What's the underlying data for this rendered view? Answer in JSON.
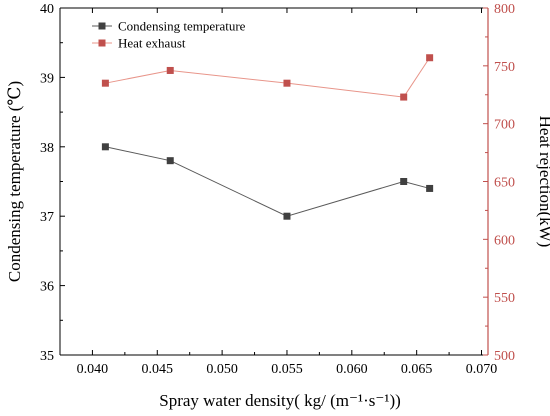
{
  "chart_data": {
    "type": "line",
    "x": [
      0.041,
      0.046,
      0.055,
      0.064,
      0.066
    ],
    "xlim": [
      0.0375,
      0.0705
    ],
    "xticks": [
      "0.040",
      "0.045",
      "0.050",
      "0.055",
      "0.060",
      "0.065",
      "0.070"
    ],
    "xlabel": "Spray water density( kg/ (m⁻¹·s⁻¹))",
    "y_left": {
      "label": "Condensing temperature (℃)",
      "lim": [
        35,
        40
      ],
      "ticks": [
        "35",
        "36",
        "37",
        "38",
        "39",
        "40"
      ]
    },
    "y_right": {
      "label": "Heat rejection(kW)",
      "lim": [
        500,
        800
      ],
      "ticks": [
        "500",
        "550",
        "600",
        "650",
        "700",
        "750",
        "800"
      ]
    },
    "series": [
      {
        "name": "Condensing temperature",
        "axis": "left",
        "color": "#595959",
        "marker_color": "#404040",
        "values": [
          38.0,
          37.8,
          37.0,
          37.5,
          37.4
        ]
      },
      {
        "name": "Heat exhaust",
        "axis": "right",
        "color": "#e8958a",
        "marker_color": "#c0504d",
        "values": [
          735,
          746,
          735,
          723,
          757
        ]
      }
    ],
    "grid": false,
    "legend_position": "top-left",
    "right_axis_color": "#c0504d"
  }
}
